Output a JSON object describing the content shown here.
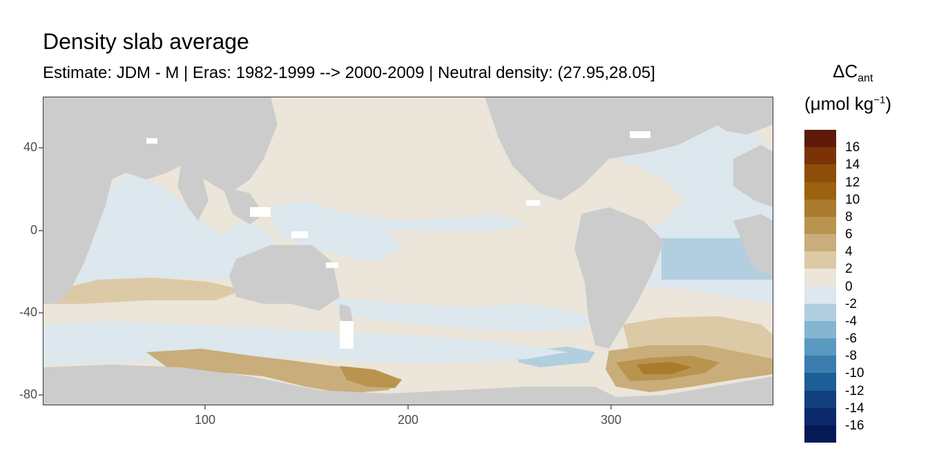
{
  "title": "Density slab average",
  "subtitle": "Estimate: JDM - M | Eras: 1982-1999 --> 2000-2009 | Neutral density: (27.95,28.05]",
  "legend": {
    "title_main": "ΔC",
    "title_sub": "ant",
    "unit_prefix": "(μmol kg",
    "unit_exp": "−1",
    "unit_suffix": ")",
    "labels": [
      "16",
      "14",
      "12",
      "10",
      "8",
      "6",
      "4",
      "2",
      "0",
      "-2",
      "-4",
      "-6",
      "-8",
      "-10",
      "-12",
      "-14",
      "-16"
    ],
    "colors": [
      "#5e1a08",
      "#7b3306",
      "#8f4d0a",
      "#9c620f",
      "#ab7b2d",
      "#b9944f",
      "#c9ad7a",
      "#dccaa6",
      "#ebe5da",
      "#dce7ee",
      "#b2cfe0",
      "#84b5d1",
      "#5a99c0",
      "#3a7dae",
      "#1d5e97",
      "#123f7e",
      "#0c2a6a",
      "#061a56"
    ]
  },
  "axes": {
    "y_ticks": [
      "40",
      "0",
      "-40",
      "-80"
    ],
    "x_ticks": [
      "100",
      "200",
      "300"
    ]
  },
  "chart_data": {
    "type": "heatmap",
    "title": "Density slab average",
    "subtitle": "Estimate: JDM - M | Eras: 1982-1999 --> 2000-2009 | Neutral density: (27.95,28.05]",
    "xlabel": "",
    "ylabel": "",
    "xlim": [
      20,
      380
    ],
    "ylim": [
      -85,
      65
    ],
    "x_ticks": [
      100,
      200,
      300
    ],
    "y_ticks": [
      40,
      0,
      -40,
      -80
    ],
    "colorbar": {
      "label": "ΔC_ant (μmol kg^-1)",
      "range": [
        -18,
        18
      ],
      "step": 2
    },
    "land_color": "#cccccc",
    "nodata_color": "#ffffff"
  }
}
